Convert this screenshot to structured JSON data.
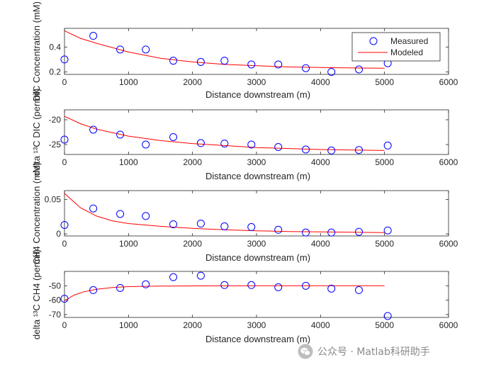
{
  "chart_data": [
    {
      "type": "scatter",
      "ylabel": "DIC Concentration (mM)",
      "xlabel": "Distance downstream (m)",
      "xlim": [
        0,
        6000
      ],
      "ylim": [
        0.18,
        0.55
      ],
      "xticks": [
        0,
        1000,
        2000,
        3000,
        4000,
        5000,
        6000
      ],
      "yticks": [
        0.2,
        0.4
      ],
      "legend": {
        "position": "top-right",
        "entries": [
          "Measured",
          "Modeled"
        ]
      },
      "series": [
        {
          "name": "Measured",
          "marker": "circle",
          "color": "#0000ff",
          "x": [
            0,
            450,
            870,
            1270,
            1700,
            2130,
            2500,
            2920,
            3340,
            3770,
            4170,
            4600,
            5050
          ],
          "y": [
            0.3,
            0.49,
            0.38,
            0.38,
            0.29,
            0.28,
            0.29,
            0.26,
            0.26,
            0.23,
            0.2,
            0.22,
            0.27
          ]
        },
        {
          "name": "Modeled",
          "line": "solid",
          "color": "#ff0000",
          "x": [
            0,
            250,
            500,
            1000,
            1500,
            2000,
            2500,
            3000,
            3500,
            4000,
            4500,
            5000
          ],
          "y": [
            0.53,
            0.47,
            0.43,
            0.36,
            0.31,
            0.28,
            0.26,
            0.25,
            0.24,
            0.235,
            0.232,
            0.23
          ]
        }
      ]
    },
    {
      "type": "scatter",
      "ylabel": "delta ¹³C DIC (permil)",
      "xlabel": "Distance downstream (m)",
      "xlim": [
        0,
        6000
      ],
      "ylim": [
        -27,
        -18
      ],
      "xticks": [
        0,
        1000,
        2000,
        3000,
        4000,
        5000,
        6000
      ],
      "yticks": [
        -20,
        -25
      ],
      "series": [
        {
          "name": "Measured",
          "marker": "circle",
          "color": "#0000ff",
          "x": [
            0,
            450,
            870,
            1270,
            1700,
            2130,
            2500,
            2920,
            3340,
            3770,
            4170,
            4600,
            5050
          ],
          "y": [
            -24.0,
            -22.0,
            -23.0,
            -25.0,
            -23.5,
            -24.7,
            -24.8,
            -25.0,
            -25.5,
            -26.0,
            -26.2,
            -26.1,
            -25.2
          ]
        },
        {
          "name": "Modeled",
          "line": "solid",
          "color": "#ff0000",
          "x": [
            0,
            250,
            500,
            1000,
            1500,
            2000,
            2500,
            3000,
            3500,
            4000,
            4500,
            5000
          ],
          "y": [
            -19.3,
            -20.8,
            -21.9,
            -23.3,
            -24.2,
            -24.8,
            -25.2,
            -25.6,
            -25.8,
            -26.0,
            -26.1,
            -26.2
          ]
        }
      ]
    },
    {
      "type": "scatter",
      "ylabel": "CH4 Concentration (mM)",
      "xlabel": "Distance downstream (m)",
      "xlim": [
        0,
        6000
      ],
      "ylim": [
        -0.003,
        0.063
      ],
      "xticks": [
        0,
        1000,
        2000,
        3000,
        4000,
        5000,
        6000
      ],
      "yticks": [
        0,
        0.05
      ],
      "series": [
        {
          "name": "Measured",
          "marker": "circle",
          "color": "#0000ff",
          "x": [
            0,
            450,
            870,
            1270,
            1700,
            2130,
            2500,
            2920,
            3340,
            3770,
            4170,
            4600,
            5050
          ],
          "y": [
            0.013,
            0.037,
            0.029,
            0.026,
            0.014,
            0.015,
            0.011,
            0.01,
            0.006,
            0.002,
            0.002,
            0.003,
            0.005
          ]
        },
        {
          "name": "Modeled",
          "line": "solid",
          "color": "#ff0000",
          "x": [
            0,
            250,
            500,
            750,
            1000,
            1500,
            2000,
            2500,
            3000,
            3500,
            4000,
            4500,
            5000
          ],
          "y": [
            0.059,
            0.038,
            0.026,
            0.019,
            0.015,
            0.011,
            0.008,
            0.006,
            0.0045,
            0.0035,
            0.003,
            0.0025,
            0.002
          ]
        }
      ]
    },
    {
      "type": "scatter",
      "ylabel": "delta ¹³C CH4 (permil)",
      "xlabel": "Distance downstream (m)",
      "xlim": [
        0,
        6000
      ],
      "ylim": [
        -72,
        -40
      ],
      "xticks": [
        0,
        1000,
        2000,
        3000,
        4000,
        5000,
        6000
      ],
      "yticks": [
        -50,
        -60,
        -70
      ],
      "series": [
        {
          "name": "Measured",
          "marker": "circle",
          "color": "#0000ff",
          "x": [
            0,
            450,
            870,
            1270,
            1700,
            2130,
            2500,
            2920,
            3340,
            3770,
            4170,
            4600,
            5050
          ],
          "y": [
            -59,
            -53,
            -51.5,
            -49,
            -44,
            -43,
            -49.5,
            -49.5,
            -51,
            -50,
            -52,
            -53,
            -71
          ]
        },
        {
          "name": "Modeled",
          "line": "solid",
          "color": "#ff0000",
          "x": [
            0,
            150,
            300,
            500,
            750,
            1000,
            1500,
            2000,
            3000,
            4000,
            5000
          ],
          "y": [
            -60.5,
            -56.5,
            -54.2,
            -52.4,
            -51.2,
            -50.6,
            -50.2,
            -50.1,
            -50,
            -50,
            -50
          ]
        }
      ]
    }
  ],
  "watermark": {
    "text": "公众号 · Matlab科研助手",
    "icon": "wechat-icon"
  }
}
